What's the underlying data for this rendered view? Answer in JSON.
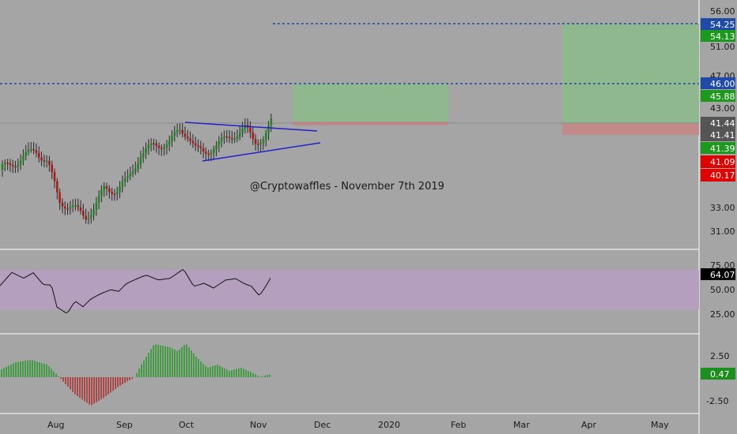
{
  "chart_data": [
    {
      "type": "candlestick",
      "watermark": "@Cryptowaffles - November 7th 2019",
      "x_tick_labels": [
        "Aug",
        "Sep",
        "Oct",
        "Nov",
        "Dec",
        "2020",
        "Feb",
        "Mar",
        "Apr",
        "May"
      ],
      "y_tick_labels": [
        "56.00",
        "51.00",
        "47.00",
        "43.00",
        "33.00",
        "31.00"
      ],
      "price_badges": [
        {
          "value": "54.25",
          "color": "#1f4aa8"
        },
        {
          "value": "54.13",
          "color": "#1d9a1d"
        },
        {
          "value": "46.00",
          "color": "#1f4aa8"
        },
        {
          "value": "45.88",
          "color": "#1d9a1d"
        },
        {
          "value": "41.44",
          "color": "#555555"
        },
        {
          "value": "41.41",
          "color": "#555555"
        },
        {
          "value": "41.39",
          "color": "#1d9a1d"
        },
        {
          "value": "41.09",
          "color": "#e00000"
        },
        {
          "value": "40.17",
          "color": "#e00000"
        }
      ],
      "horizontal_levels": [
        54.25,
        46.0
      ],
      "colors": {
        "up": "#1a8a1a",
        "down": "#b01818",
        "level": "#1f4aa8",
        "triangle": "#2222cc",
        "target_zone": "#8fb88f",
        "stop_zone": "#c38a8a"
      }
    },
    {
      "type": "line",
      "indicator": "RSI",
      "y_tick_labels": [
        "75.00",
        "50.00",
        "25.00"
      ],
      "current_value": "64.07",
      "band": [
        30,
        70
      ],
      "colors": {
        "line": "#111111",
        "band": "#b49fbf"
      }
    },
    {
      "type": "bar",
      "indicator": "MACD histogram",
      "y_tick_labels": [
        "2.50",
        "-2.50"
      ],
      "current_value": "0.47",
      "colors": {
        "positive": "#1a9a1a",
        "negative": "#b02020"
      }
    }
  ]
}
